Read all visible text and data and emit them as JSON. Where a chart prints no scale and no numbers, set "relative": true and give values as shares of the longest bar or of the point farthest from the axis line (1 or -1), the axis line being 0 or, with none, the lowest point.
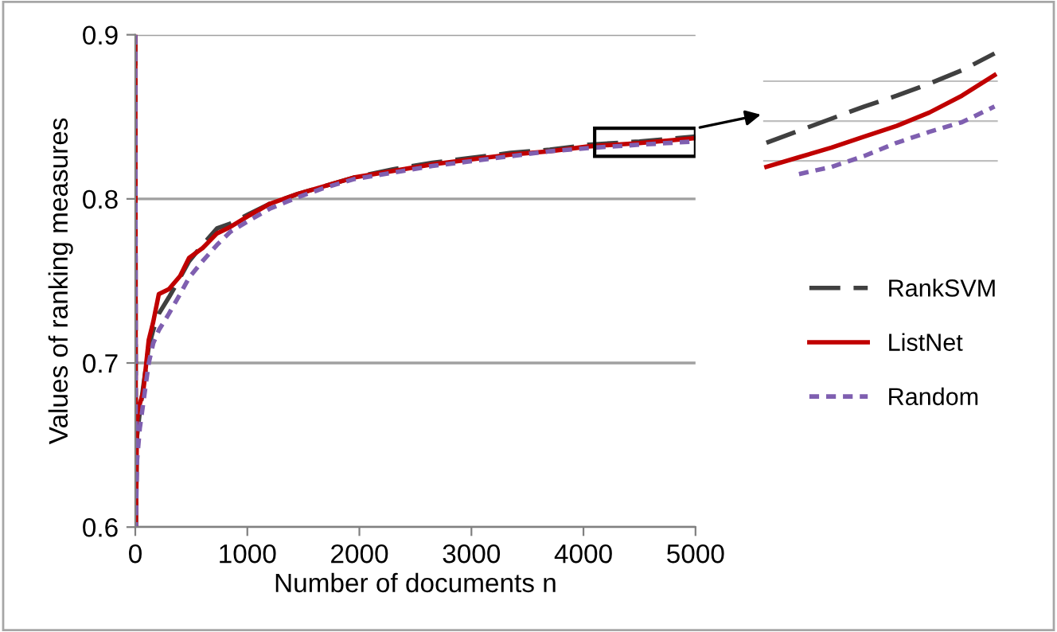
{
  "chart_data": [
    {
      "type": "line",
      "xlabel": "Number of documents n",
      "ylabel": "Values of ranking measures",
      "x": [
        0,
        5,
        15,
        40,
        70,
        120,
        160,
        210,
        300,
        400,
        480,
        600,
        730,
        850,
        1020,
        1200,
        1450,
        1700,
        1950,
        2300,
        2650,
        3000,
        3350,
        3700,
        4050,
        4500,
        5000
      ],
      "series": [
        {
          "name": "RankSVM",
          "color": "#404040",
          "line_style": "dashed",
          "values": [
            0.9,
            0.6,
            0.655,
            0.67,
            0.685,
            0.71,
            0.72,
            0.73,
            0.74,
            0.752,
            0.762,
            0.772,
            0.782,
            0.785,
            0.791,
            0.797,
            0.803,
            0.808,
            0.813,
            0.818,
            0.822,
            0.825,
            0.828,
            0.83,
            0.833,
            0.835,
            0.838
          ]
        },
        {
          "name": "ListNet",
          "color": "#c00000",
          "line_style": "solid",
          "values": [
            0.9,
            0.6,
            0.665,
            0.675,
            0.682,
            0.714,
            0.725,
            0.742,
            0.745,
            0.753,
            0.764,
            0.77,
            0.779,
            0.783,
            0.79,
            0.797,
            0.803,
            0.808,
            0.813,
            0.817,
            0.821,
            0.824,
            0.827,
            0.829,
            0.832,
            0.834,
            0.837
          ]
        },
        {
          "name": "Random",
          "color": "#7f5fb0",
          "line_style": "dotted",
          "values": [
            0.9,
            0.6,
            0.64,
            0.66,
            0.675,
            0.7,
            0.712,
            0.72,
            0.73,
            0.742,
            0.752,
            0.762,
            0.772,
            0.78,
            0.787,
            0.794,
            0.801,
            0.807,
            0.812,
            0.816,
            0.82,
            0.823,
            0.826,
            0.829,
            0.831,
            0.833,
            0.835
          ]
        }
      ],
      "xlim": [
        0,
        5000
      ],
      "xticks": [
        0,
        1000,
        2000,
        3000,
        4000,
        5000
      ],
      "ylim": [
        0.6,
        0.9
      ],
      "yticks": [
        0.6,
        0.7,
        0.8,
        0.9
      ],
      "grid": "y",
      "legend": "right",
      "marker": "none"
    },
    {
      "type": "line",
      "relative": true,
      "categories": [
        null,
        null,
        null,
        null,
        null,
        null,
        null,
        null
      ],
      "series": [
        {
          "color": "#404040",
          "line_style": "dashed",
          "values": [
            0.26,
            0.36,
            0.46,
            0.56,
            0.65,
            0.75,
            0.86,
            1.0
          ]
        },
        {
          "color": "#c00000",
          "line_style": "solid",
          "values": [
            0.06,
            0.14,
            0.22,
            0.31,
            0.4,
            0.51,
            0.65,
            0.82
          ]
        },
        {
          "color": "#7f5fb0",
          "line_style": "dotted",
          "values": [
            null,
            0,
            0.06,
            0.15,
            0.26,
            0.35,
            0.43,
            0.56
          ]
        }
      ],
      "ref_lines": [
        {
          "axis": "y",
          "value": 0.77,
          "color": "#bfbfbf"
        },
        {
          "axis": "y",
          "value": 0.44,
          "color": "#bfbfbf"
        },
        {
          "axis": "y",
          "value": 0.11,
          "color": "#bfbfbf"
        }
      ],
      "marker": "none"
    }
  ]
}
